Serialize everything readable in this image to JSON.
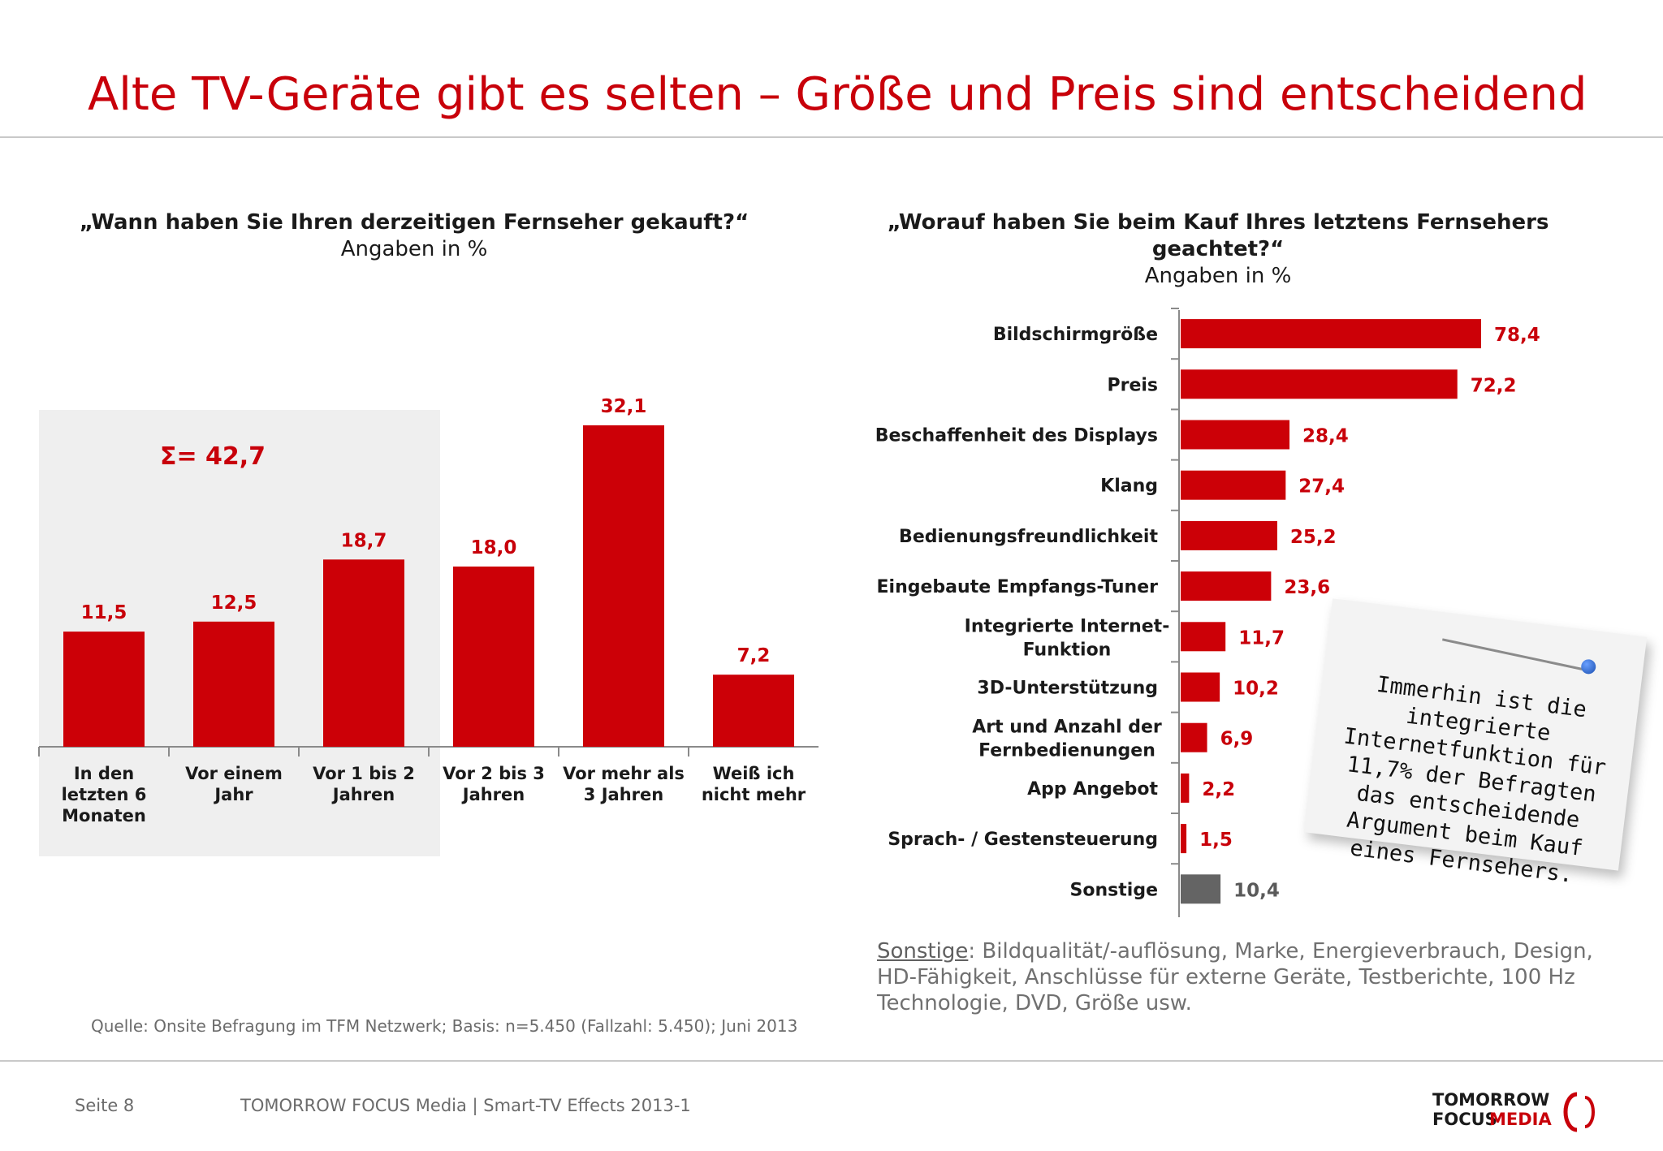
{
  "title": "Alte TV-Geräte gibt es selten – Größe und Preis sind entscheidend",
  "colors": {
    "accent": "#c8000a",
    "bar": "#cc0007",
    "other_bar": "#646464"
  },
  "chart_data": [
    {
      "type": "bar",
      "title": "„Wann haben Sie Ihren derzeitigen Fernseher gekauft?“",
      "subtitle": "Angaben in %",
      "categories": [
        "In den letzten 6 Monaten",
        "Vor einem Jahr",
        "Vor 1 bis 2 Jahren",
        "Vor 2 bis 3 Jahren",
        "Vor mehr als 3 Jahren",
        "Weiß ich nicht mehr"
      ],
      "category_lines": [
        [
          "In den",
          "letzten 6",
          "Monaten"
        ],
        [
          "Vor einem",
          "Jahr"
        ],
        [
          "Vor 1 bis 2",
          "Jahren"
        ],
        [
          "Vor 2 bis 3",
          "Jahren"
        ],
        [
          "Vor mehr als",
          "3 Jahren"
        ],
        [
          "Weiß ich",
          "nicht mehr"
        ]
      ],
      "values": [
        11.5,
        12.5,
        18.7,
        18.0,
        32.1,
        7.2
      ],
      "value_labels": [
        "11,5",
        "12,5",
        "18,7",
        "18,0",
        "32,1",
        "7,2"
      ],
      "ylim": [
        0,
        35
      ],
      "grid": false,
      "highlight": {
        "label": "Σ= 42,7",
        "categories": [
          0,
          1,
          2
        ]
      }
    },
    {
      "type": "bar",
      "orientation": "horizontal",
      "title": "„Worauf haben Sie beim Kauf Ihres letztens Fernsehers geachtet?“",
      "title_lines": [
        "„Worauf haben Sie beim Kauf Ihres letztens Fernsehers",
        "geachtet?“"
      ],
      "subtitle": "Angaben in %",
      "categories": [
        "Bildschirmgröße",
        "Preis",
        "Beschaffenheit des Displays",
        "Klang",
        "Bedienungsfreundlichkeit",
        "Eingebaute Empfangs-Tuner",
        "Integrierte Internet-Funktion",
        "3D-Unterstützung",
        "Art und Anzahl der Fernbedienungen",
        "App Angebot",
        "Sprach- / Gestensteuerung",
        "Sonstige"
      ],
      "category_lines": [
        [
          "Bildschirmgröße"
        ],
        [
          "Preis"
        ],
        [
          "Beschaffenheit des Displays"
        ],
        [
          "Klang"
        ],
        [
          "Bedienungsfreundlichkeit"
        ],
        [
          "Eingebaute Empfangs-Tuner"
        ],
        [
          "Integrierte Internet-",
          "Funktion"
        ],
        [
          "3D-Unterstützung"
        ],
        [
          "Art und Anzahl der",
          "Fernbedienungen"
        ],
        [
          "App Angebot"
        ],
        [
          "Sprach- / Gestensteuerung"
        ],
        [
          "Sonstige"
        ]
      ],
      "values": [
        78.4,
        72.2,
        28.4,
        27.4,
        25.2,
        23.6,
        11.7,
        10.2,
        6.9,
        2.2,
        1.5,
        10.4
      ],
      "value_labels": [
        "78,4",
        "72,2",
        "28,4",
        "27,4",
        "25,2",
        "23,6",
        "11,7",
        "10,2",
        "6,9",
        "2,2",
        "1,5",
        "10,4"
      ],
      "xlim": [
        0,
        100
      ],
      "grid": false
    }
  ],
  "note": {
    "label": "Sonstige",
    "text": ": Bildqualität/-auflösung, Marke, Energieverbrauch, Design, HD-Fähigkeit, Anschlüsse für externe Geräte, Testberichte, 100 Hz Technologie, DVD, Größe usw."
  },
  "sticky_note": "Immerhin ist die integrierte Internetfunktion für 11,7% der Befragten das entscheidende Argument beim Kauf eines Fernsehers.",
  "source": "Quelle: Onsite Befragung im TFM Netzwerk; Basis: n=5.450 (Fallzahl: 5.450); Juni 2013",
  "footer": {
    "page": "Seite 8",
    "company": "TOMORROW FOCUS Media  |  Smart-TV Effects 2013-1"
  },
  "logo": {
    "line1": "TOMORROW",
    "line2a": "FOCUS",
    "line2b": "MEDIA"
  }
}
